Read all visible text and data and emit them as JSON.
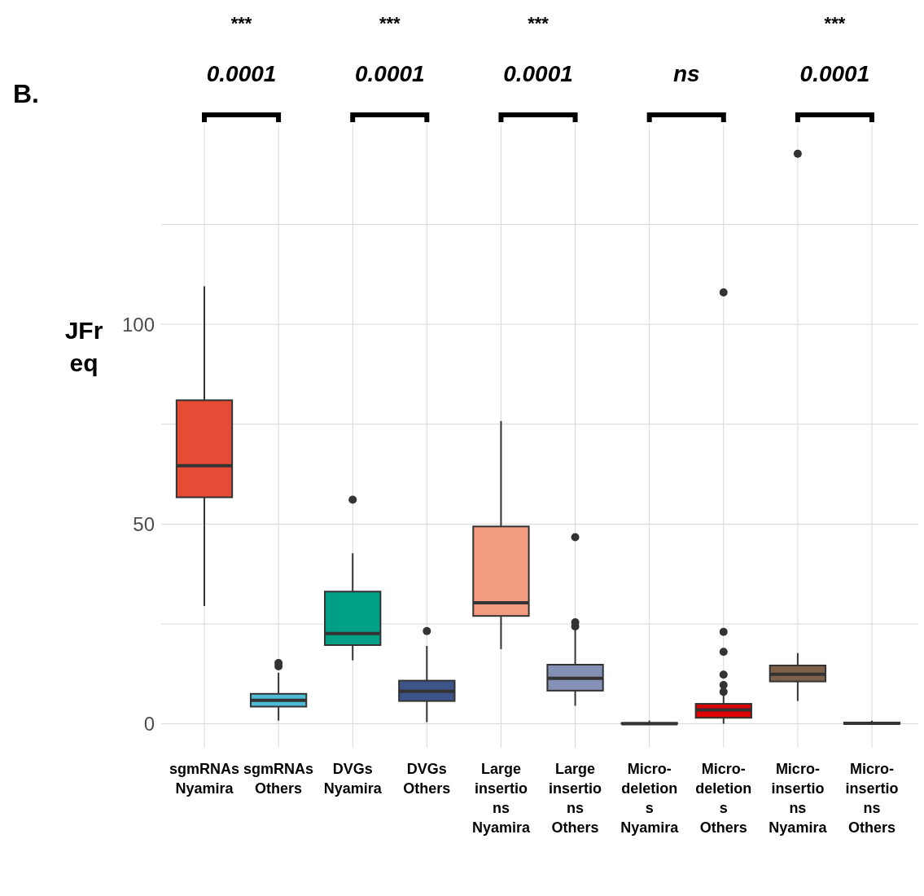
{
  "chart_data": {
    "type": "box",
    "ylabel": "JFreq",
    "categories": [
      "sgmRNAs Nyamira",
      "sgmRNAs Others",
      "DVGs Nyamira",
      "DVGs Others",
      "Large insertions Nyamira",
      "Large insertions Others",
      "Micro-deletions Nyamira",
      "Micro-deletions Others",
      "Micro-insertions Nyamira",
      "Micro-insertions Others"
    ],
    "colors": [
      "#e64b35",
      "#4dbbd5",
      "#00a087",
      "#3c5488",
      "#f39b7f",
      "#8491b4",
      "#91d1c2",
      "#dc0000",
      "#7e6148",
      "#b09c85"
    ],
    "boxes": [
      {
        "low": 29.5,
        "q1": 56.7,
        "median": 64.6,
        "q3": 81,
        "high": 109.5
      },
      {
        "low": 0.8,
        "q1": 4.3,
        "median": 5.9,
        "q3": 7.5,
        "high": 12.8,
        "outliers": [
          14.4,
          15.2
        ]
      },
      {
        "low": 15.9,
        "q1": 19.7,
        "median": 22.6,
        "q3": 33.1,
        "high": 42.7,
        "outliers": [
          56.1
        ]
      },
      {
        "low": 0.4,
        "q1": 5.7,
        "median": 8.1,
        "q3": 10.8,
        "high": 19.5,
        "outliers": [
          23.2
        ]
      },
      {
        "low": 18.7,
        "q1": 27,
        "median": 30.3,
        "q3": 49.4,
        "high": 75.8
      },
      {
        "low": 4.5,
        "q1": 8.3,
        "median": 11.4,
        "q3": 14.8,
        "high": 24,
        "outliers": [
          24.4,
          25.4,
          46.7
        ]
      },
      {
        "low": 0,
        "q1": 0,
        "median": 0,
        "q3": 0.2,
        "high": 0.8
      },
      {
        "low": 0,
        "q1": 1.5,
        "median": 3.5,
        "q3": 5,
        "high": 10,
        "outliers": [
          8,
          9.7,
          12.3,
          18,
          23,
          108
        ]
      },
      {
        "low": 5.7,
        "q1": 10.6,
        "median": 12.4,
        "q3": 14.6,
        "high": 17.7,
        "outliers": [
          142.7
        ]
      },
      {
        "low": 0,
        "q1": 0,
        "median": 0.1,
        "q3": 0.3,
        "high": 0.8
      }
    ],
    "ylim": [
      -6,
      150
    ],
    "yticks": [
      0,
      {
        "value": 25,
        "label": null
      },
      50,
      {
        "value": 75,
        "label": null
      },
      100,
      {
        "value": 125,
        "label": null
      }
    ],
    "grid": true,
    "annotations": [
      "B.",
      "***",
      "0.0001",
      "***",
      "0.0001",
      "***",
      "0.0001",
      "ns",
      "***",
      "0.0001"
    ]
  }
}
